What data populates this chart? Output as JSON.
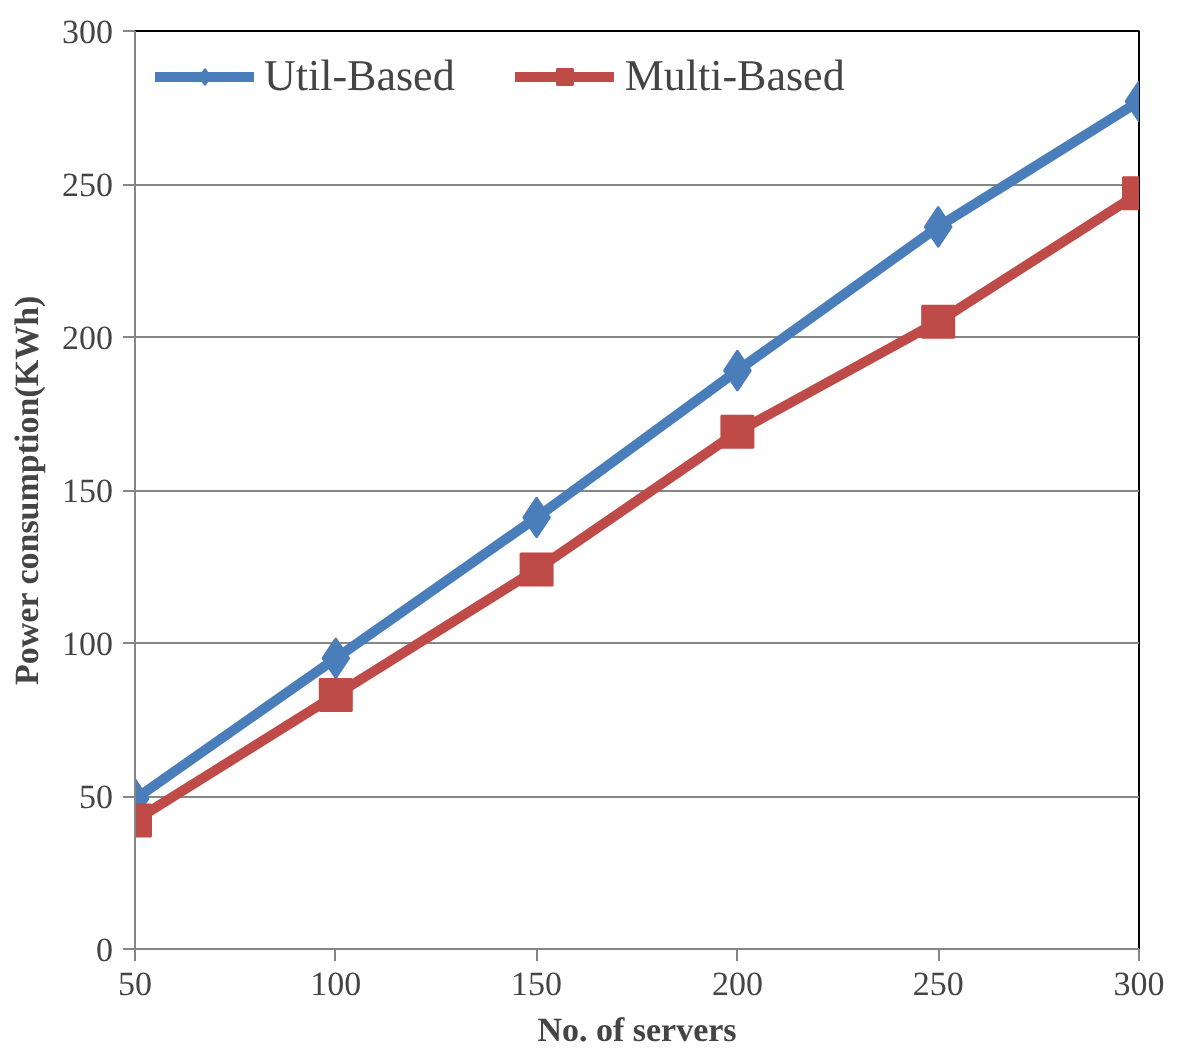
{
  "chart_data": {
    "type": "line",
    "xlabel": "No. of servers",
    "ylabel": "Power consumption(KWh)",
    "x": [
      50,
      100,
      150,
      200,
      250,
      300
    ],
    "series": [
      {
        "name": "Util-Based",
        "color": "#4a7ebb",
        "marker": "diamond",
        "values": [
          49,
          95,
          141,
          189,
          236,
          277
        ]
      },
      {
        "name": "Multi-Based",
        "color": "#be4b48",
        "marker": "square",
        "values": [
          42,
          83,
          124,
          169,
          205,
          247
        ]
      }
    ],
    "xlim": [
      50,
      300
    ],
    "xticks": [
      50,
      100,
      150,
      200,
      250,
      300
    ],
    "ylim": [
      0,
      300
    ],
    "yticks": [
      0,
      50,
      100,
      150,
      200,
      250,
      300
    ],
    "grid": "y",
    "legend": "top left",
    "line_style": "solid"
  }
}
